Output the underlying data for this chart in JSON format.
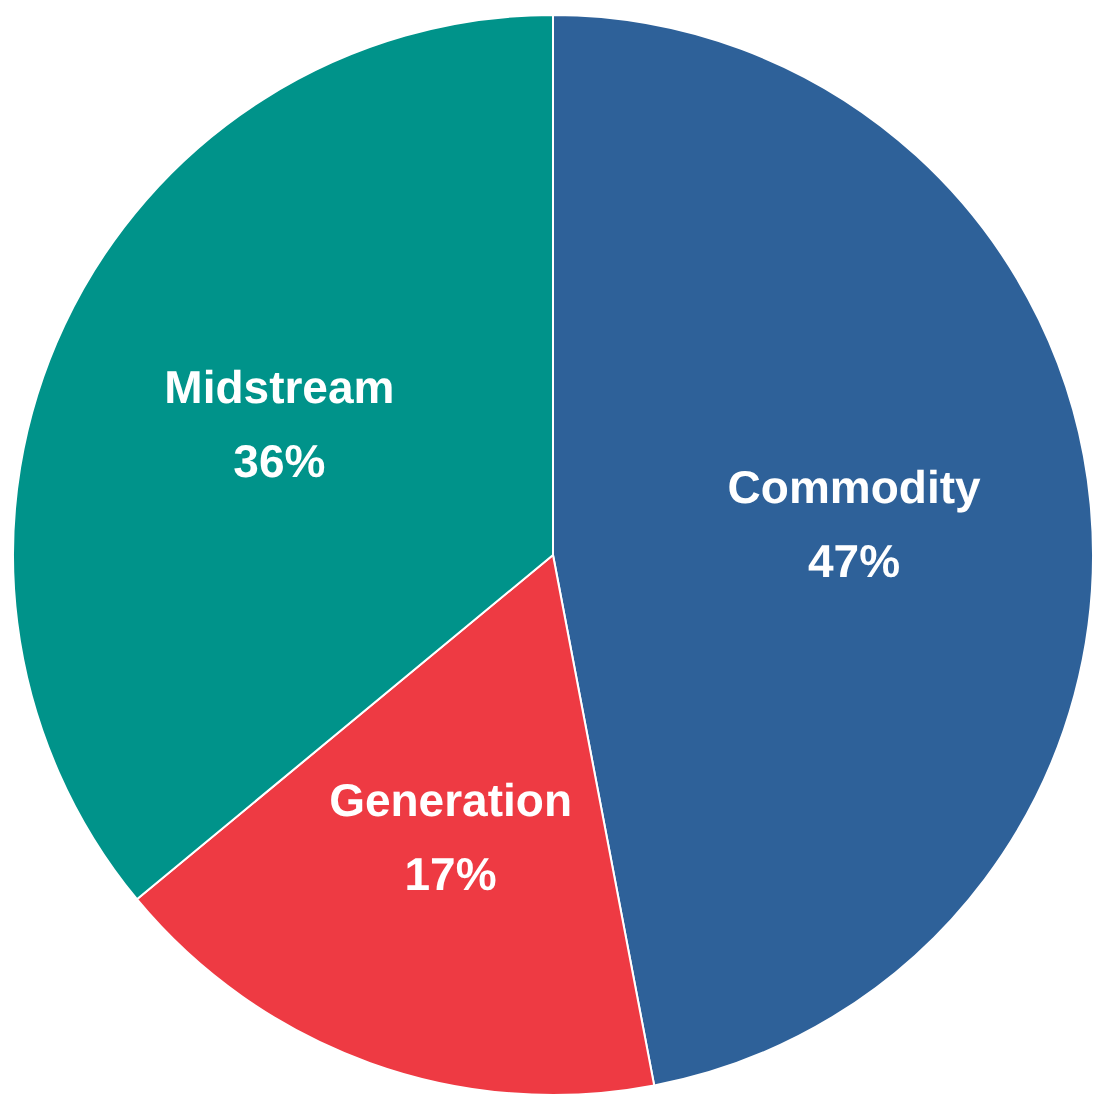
{
  "chart_data": {
    "type": "pie",
    "categories": [
      "Commodity",
      "Generation",
      "Midstream"
    ],
    "values": [
      47,
      17,
      36
    ],
    "colors": [
      "#2e6199",
      "#ee3a43",
      "#00938a"
    ],
    "value_labels": [
      "47%",
      "17%",
      "36%"
    ],
    "legend": false
  }
}
